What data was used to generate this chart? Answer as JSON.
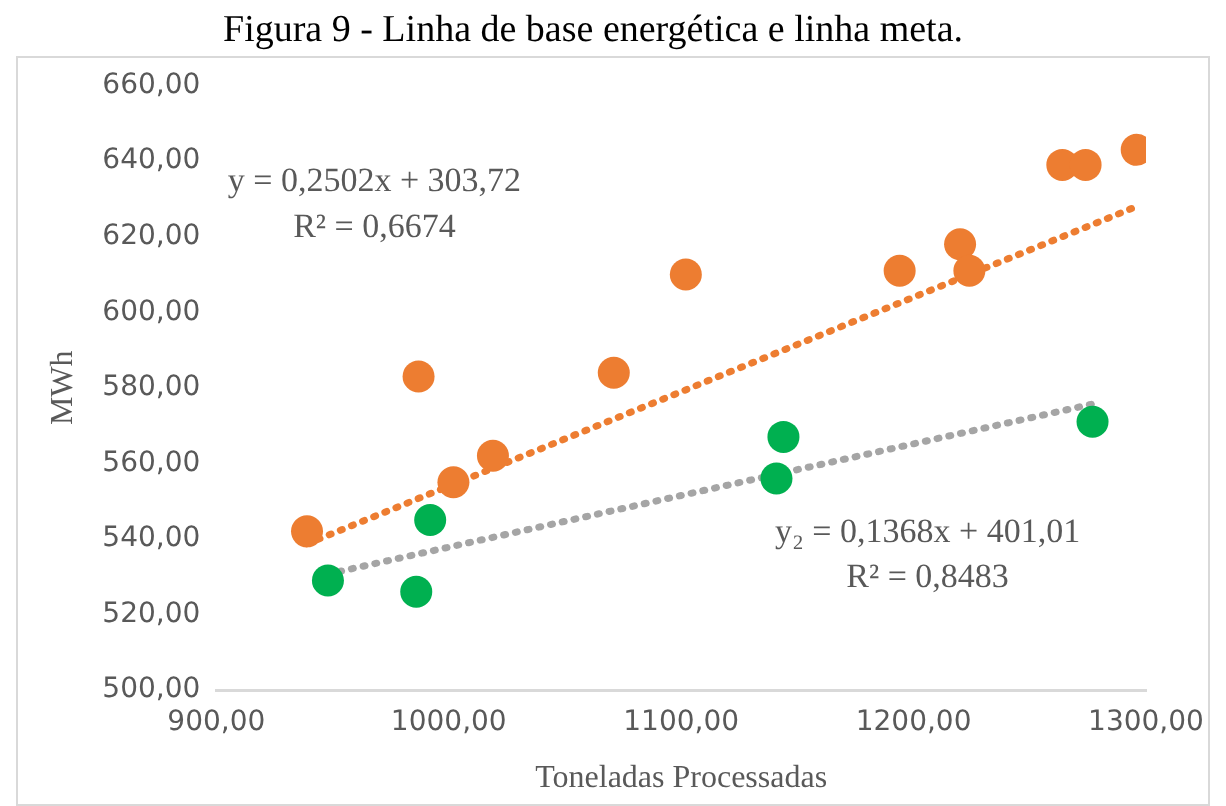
{
  "chart_data": {
    "type": "scatter",
    "title": "Figura 9 - Linha de base energética e linha meta.",
    "xlabel": "Toneladas Processadas",
    "ylabel": "MWh",
    "series": [
      {
        "color": "#ed7d31",
        "x": [
          939,
          987,
          1002,
          1019,
          1071,
          1102,
          1194,
          1220,
          1224,
          1264,
          1274,
          1296
        ],
        "values": [
          542,
          583,
          555,
          562,
          584,
          610,
          611,
          618,
          611,
          639,
          639,
          643
        ]
      },
      {
        "color": "#00b050",
        "x": [
          948,
          986,
          992,
          1141,
          1144,
          1277
        ],
        "values": [
          529,
          526,
          545,
          556,
          567,
          571
        ]
      },
      {
        "type": "line",
        "line_style": "dotted",
        "marker": "none",
        "color": "#ed7d31",
        "x": [
          939,
          1296
        ],
        "values": [
          538.7,
          628.0
        ]
      },
      {
        "type": "line",
        "line_style": "dotted",
        "marker": "none",
        "color": "#a5a5a5",
        "x": [
          948,
          1277
        ],
        "values": [
          530.7,
          575.7
        ]
      }
    ],
    "marker": "circle",
    "xlim": [
      900,
      1300
    ],
    "xticks": [
      {
        "value": 900,
        "label": "900,00"
      },
      {
        "value": 1000,
        "label": "1000,00"
      },
      {
        "value": 1100,
        "label": "1100,00"
      },
      {
        "value": 1200,
        "label": "1200,00"
      },
      {
        "value": 1300,
        "label": "1300,00"
      }
    ],
    "ylim": [
      500,
      660
    ],
    "yticks": [
      {
        "value": 500,
        "label": "500,00"
      },
      {
        "value": 520,
        "label": "520,00"
      },
      {
        "value": 540,
        "label": "540,00"
      },
      {
        "value": 560,
        "label": "560,00"
      },
      {
        "value": 580,
        "label": "580,00"
      },
      {
        "value": 600,
        "label": "600,00"
      },
      {
        "value": 620,
        "label": "620,00"
      },
      {
        "value": 640,
        "label": "640,00"
      },
      {
        "value": 660,
        "label": "660,00"
      }
    ],
    "annotations": [
      "y = 0,2502x + 303,72",
      "R² = 0,6674",
      "y₂ = 0,1368x + 401,01",
      "R² = 0,8483"
    ],
    "grid": false,
    "legend": false
  }
}
